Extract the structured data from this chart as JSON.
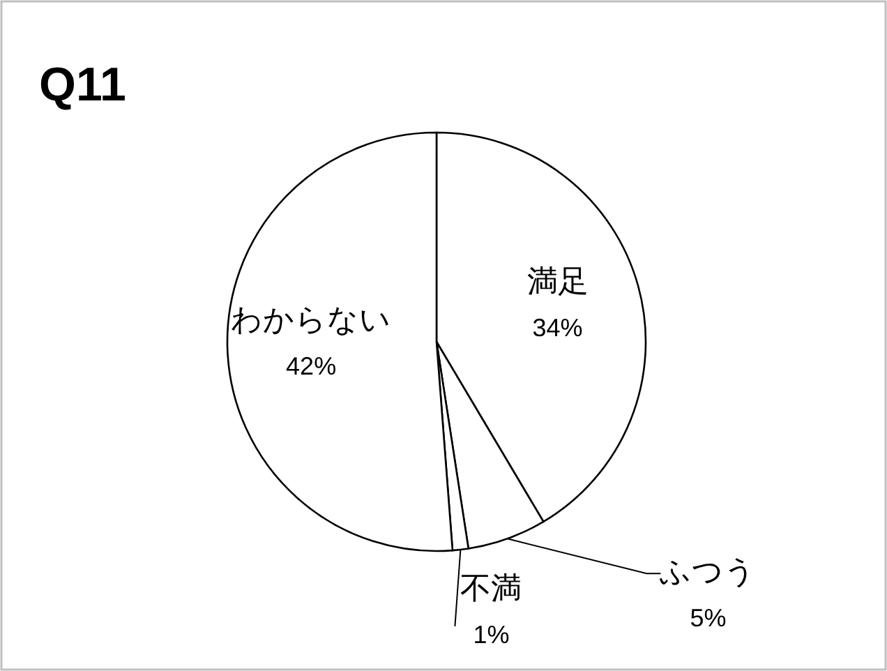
{
  "chart_data": {
    "type": "pie",
    "title": "Q11",
    "categories": [
      "満足",
      "ふつう",
      "不満",
      "わからない"
    ],
    "values": [
      34,
      5,
      1,
      42
    ],
    "colors": [
      "#ffffff",
      "#ffffff",
      "#ffffff",
      "#ffffff"
    ],
    "value_labels": [
      "34%",
      "5%",
      "1%",
      "42%"
    ]
  }
}
